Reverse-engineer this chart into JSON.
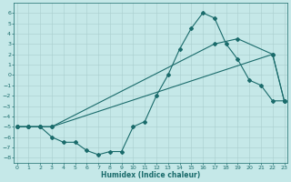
{
  "xlabel": "Humidex (Indice chaleur)",
  "background_color": "#c5e8e8",
  "grid_color": "#aacece",
  "line_color": "#1a6b6b",
  "line1": {
    "x": [
      0,
      1,
      2,
      3,
      4,
      5,
      6,
      7,
      8,
      9,
      10,
      11,
      12,
      13,
      14,
      15,
      16,
      17,
      18,
      19,
      20,
      21,
      22,
      23
    ],
    "y": [
      -5,
      -5,
      -5,
      -6,
      -6.5,
      -6.5,
      -7.3,
      -7.7,
      -7.4,
      -7.4,
      -5,
      -4.5,
      -2,
      0,
      2.5,
      4.5,
      6,
      5.5,
      3,
      1.5,
      -0.5,
      -1,
      -2.5,
      -2.5
    ]
  },
  "line2": {
    "x": [
      0,
      1,
      2,
      3,
      22,
      23
    ],
    "y": [
      -5,
      -5,
      -5,
      -5,
      2.0,
      -2.5
    ]
  },
  "line3": {
    "x": [
      0,
      1,
      2,
      3,
      17,
      19,
      22,
      23
    ],
    "y": [
      -5,
      -5,
      -5,
      -5,
      3.0,
      3.5,
      2.0,
      -2.5
    ]
  },
  "xlim": [
    -0.3,
    23.3
  ],
  "ylim": [
    -8.5,
    7.0
  ],
  "yticks": [
    6,
    5,
    4,
    3,
    2,
    1,
    0,
    -1,
    -2,
    -3,
    -4,
    -5,
    -6,
    -7,
    -8
  ],
  "xticks": [
    0,
    1,
    2,
    3,
    4,
    5,
    6,
    7,
    8,
    9,
    10,
    11,
    12,
    13,
    14,
    15,
    16,
    17,
    18,
    19,
    20,
    21,
    22,
    23
  ],
  "xlabel_fontsize": 5.5,
  "tick_fontsize": 4.5,
  "linewidth": 0.8,
  "markersize": 2.0
}
